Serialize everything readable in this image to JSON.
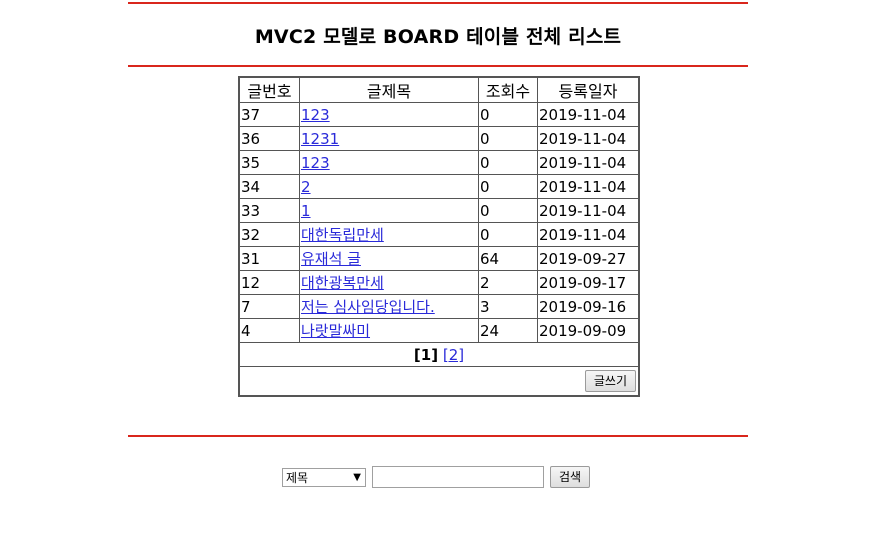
{
  "header": {
    "title": "MVC2 모델로 BOARD 테이블 전체 리스트"
  },
  "table": {
    "columns": [
      "글번호",
      "글제목",
      "조회수",
      "등록일자"
    ],
    "rows": [
      {
        "num": "37",
        "title": "123",
        "hits": "0",
        "date": "2019-11-04"
      },
      {
        "num": "36",
        "title": "1231",
        "hits": "0",
        "date": "2019-11-04"
      },
      {
        "num": "35",
        "title": "123",
        "hits": "0",
        "date": "2019-11-04"
      },
      {
        "num": "34",
        "title": "2",
        "hits": "0",
        "date": "2019-11-04"
      },
      {
        "num": "33",
        "title": "1",
        "hits": "0",
        "date": "2019-11-04"
      },
      {
        "num": "32",
        "title": "대한독립만세",
        "hits": "0",
        "date": "2019-11-04"
      },
      {
        "num": "31",
        "title": "유재석 글",
        "hits": "64",
        "date": "2019-09-27"
      },
      {
        "num": "12",
        "title": "대한광복만세",
        "hits": "2",
        "date": "2019-09-17"
      },
      {
        "num": "7",
        "title": "저는 심사임당입니다.",
        "hits": "3",
        "date": "2019-09-16"
      },
      {
        "num": "4",
        "title": "나랏말싸미",
        "hits": "24",
        "date": "2019-09-09"
      }
    ]
  },
  "pagination": {
    "current": "[1]",
    "other": "[2]"
  },
  "write_button": "글쓰기",
  "search": {
    "field_selected": "제목",
    "query": "",
    "button": "검색"
  },
  "colors": {
    "rule": "#d9261c",
    "link": "#2a2ad9"
  }
}
